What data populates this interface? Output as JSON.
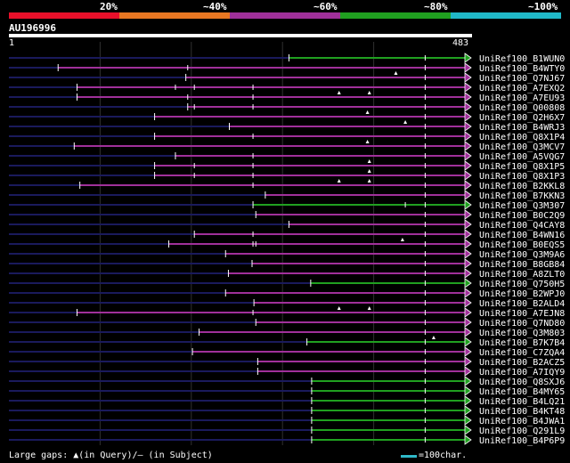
{
  "header": {
    "thresholds": [
      "20%",
      "~40%",
      "~60%",
      "~80%",
      "~100%"
    ],
    "colors": [
      "#e8102a",
      "#e87722",
      "#a0309a",
      "#20a020",
      "#20b8c8"
    ]
  },
  "query": {
    "id": "AU196996",
    "start": "1",
    "end": "483",
    "length": 483
  },
  "legend": {
    "text": "Large gaps: ▲(in Query)/– (in Subject)",
    "scale_label": "=100char.",
    "scale_chars": 100
  },
  "hits": [
    {
      "label": "UniRef100_B1WUN0",
      "start": 297,
      "end": 483,
      "color": "green",
      "ticks": [
        441
      ],
      "marks": []
    },
    {
      "label": "UniRef100_B4WTY0",
      "start": 53,
      "end": 483,
      "color": "magenta",
      "ticks": [
        190,
        441
      ],
      "marks": []
    },
    {
      "label": "UniRef100_Q7NJ67",
      "start": 188,
      "end": 483,
      "color": "magenta",
      "ticks": [
        441
      ],
      "marks": [
        410
      ]
    },
    {
      "label": "UniRef100_A7EXQ2",
      "start": 73,
      "end": 483,
      "color": "magenta",
      "ticks": [
        177,
        197,
        259,
        441
      ],
      "marks": []
    },
    {
      "label": "UniRef100_A7EU93",
      "start": 73,
      "end": 483,
      "color": "magenta",
      "ticks": [
        190,
        259,
        441
      ],
      "marks": [
        350,
        382
      ]
    },
    {
      "label": "UniRef100_Q00808",
      "start": 190,
      "end": 483,
      "color": "magenta",
      "ticks": [
        197,
        259,
        441
      ],
      "marks": []
    },
    {
      "label": "UniRef100_Q2H6X7",
      "start": 155,
      "end": 483,
      "color": "magenta",
      "ticks": [
        441
      ],
      "marks": [
        380
      ]
    },
    {
      "label": "UniRef100_B4WRJ3",
      "start": 234,
      "end": 483,
      "color": "magenta",
      "ticks": [
        441
      ],
      "marks": [
        420
      ]
    },
    {
      "label": "UniRef100_Q8X1P4",
      "start": 155,
      "end": 483,
      "color": "magenta",
      "ticks": [
        259,
        441
      ],
      "marks": []
    },
    {
      "label": "UniRef100_Q3MCV7",
      "start": 70,
      "end": 483,
      "color": "magenta",
      "ticks": [
        441
      ],
      "marks": [
        380
      ]
    },
    {
      "label": "UniRef100_A5VQG7",
      "start": 177,
      "end": 483,
      "color": "magenta",
      "ticks": [
        259,
        441
      ],
      "marks": []
    },
    {
      "label": "UniRef100_Q8X1P5",
      "start": 155,
      "end": 483,
      "color": "magenta",
      "ticks": [
        197,
        259,
        441
      ],
      "marks": [
        382
      ]
    },
    {
      "label": "UniRef100_Q8X1P3",
      "start": 155,
      "end": 483,
      "color": "magenta",
      "ticks": [
        197,
        259,
        441
      ],
      "marks": [
        382
      ]
    },
    {
      "label": "UniRef100_B2KKL8",
      "start": 76,
      "end": 483,
      "color": "magenta",
      "ticks": [
        259,
        441
      ],
      "marks": [
        350,
        382
      ]
    },
    {
      "label": "UniRef100_B7KKN3",
      "start": 272,
      "end": 483,
      "color": "magenta",
      "ticks": [
        441
      ],
      "marks": []
    },
    {
      "label": "UniRef100_Q3M307",
      "start": 259,
      "end": 483,
      "color": "green",
      "ticks": [
        420,
        441
      ],
      "marks": []
    },
    {
      "label": "UniRef100_B0C2Q9",
      "start": 262,
      "end": 483,
      "color": "magenta",
      "ticks": [
        441
      ],
      "marks": []
    },
    {
      "label": "UniRef100_Q4CAY8",
      "start": 297,
      "end": 483,
      "color": "magenta",
      "ticks": [
        441
      ],
      "marks": []
    },
    {
      "label": "UniRef100_B4WN16",
      "start": 197,
      "end": 483,
      "color": "magenta",
      "ticks": [
        259,
        441
      ],
      "marks": []
    },
    {
      "label": "UniRef100_B0EQS5",
      "start": 170,
      "end": 483,
      "color": "magenta",
      "ticks": [
        259,
        262,
        441
      ],
      "marks": [
        417
      ]
    },
    {
      "label": "UniRef100_Q3M9A6",
      "start": 230,
      "end": 483,
      "color": "magenta",
      "ticks": [
        441
      ],
      "marks": []
    },
    {
      "label": "UniRef100_B8GB84",
      "start": 258,
      "end": 483,
      "color": "magenta",
      "ticks": [
        441
      ],
      "marks": []
    },
    {
      "label": "UniRef100_A8ZLT0",
      "start": 233,
      "end": 483,
      "color": "magenta",
      "ticks": [
        441
      ],
      "marks": []
    },
    {
      "label": "UniRef100_Q750H5",
      "start": 320,
      "end": 483,
      "color": "green",
      "ticks": [
        441
      ],
      "marks": []
    },
    {
      "label": "UniRef100_B2WPJ0",
      "start": 230,
      "end": 483,
      "color": "magenta",
      "ticks": [
        441
      ],
      "marks": []
    },
    {
      "label": "UniRef100_B2ALD4",
      "start": 260,
      "end": 483,
      "color": "magenta",
      "ticks": [
        441
      ],
      "marks": []
    },
    {
      "label": "UniRef100_A7EJN8",
      "start": 73,
      "end": 483,
      "color": "magenta",
      "ticks": [
        259,
        441
      ],
      "marks": [
        350,
        382
      ]
    },
    {
      "label": "UniRef100_Q7ND80",
      "start": 262,
      "end": 483,
      "color": "magenta",
      "ticks": [
        441
      ],
      "marks": []
    },
    {
      "label": "UniRef100_Q3M803",
      "start": 202,
      "end": 483,
      "color": "magenta",
      "ticks": [
        441
      ],
      "marks": []
    },
    {
      "label": "UniRef100_B7K7B4",
      "start": 316,
      "end": 483,
      "color": "green",
      "ticks": [
        441
      ],
      "marks": [
        450
      ]
    },
    {
      "label": "UniRef100_C7ZQA4",
      "start": 195,
      "end": 483,
      "color": "magenta",
      "ticks": [
        441
      ],
      "marks": []
    },
    {
      "label": "UniRef100_B2ACZ5",
      "start": 264,
      "end": 483,
      "color": "magenta",
      "ticks": [
        441
      ],
      "marks": []
    },
    {
      "label": "UniRef100_A7IQY9",
      "start": 264,
      "end": 483,
      "color": "magenta",
      "ticks": [
        441
      ],
      "marks": []
    },
    {
      "label": "UniRef100_Q8SXJ6",
      "start": 321,
      "end": 483,
      "color": "green",
      "ticks": [
        441
      ],
      "marks": []
    },
    {
      "label": "UniRef100_B4MY65",
      "start": 321,
      "end": 483,
      "color": "green",
      "ticks": [
        441
      ],
      "marks": []
    },
    {
      "label": "UniRef100_B4LQ21",
      "start": 321,
      "end": 483,
      "color": "green",
      "ticks": [
        441
      ],
      "marks": []
    },
    {
      "label": "UniRef100_B4KT48",
      "start": 321,
      "end": 483,
      "color": "green",
      "ticks": [
        441
      ],
      "marks": []
    },
    {
      "label": "UniRef100_B4JWA1",
      "start": 321,
      "end": 483,
      "color": "green",
      "ticks": [
        441
      ],
      "marks": []
    },
    {
      "label": "UniRef100_Q291L9",
      "start": 321,
      "end": 483,
      "color": "green",
      "ticks": [
        441
      ],
      "marks": []
    },
    {
      "label": "UniRef100_B4P6P9",
      "start": 321,
      "end": 483,
      "color": "green",
      "ticks": [
        441
      ],
      "marks": []
    }
  ]
}
